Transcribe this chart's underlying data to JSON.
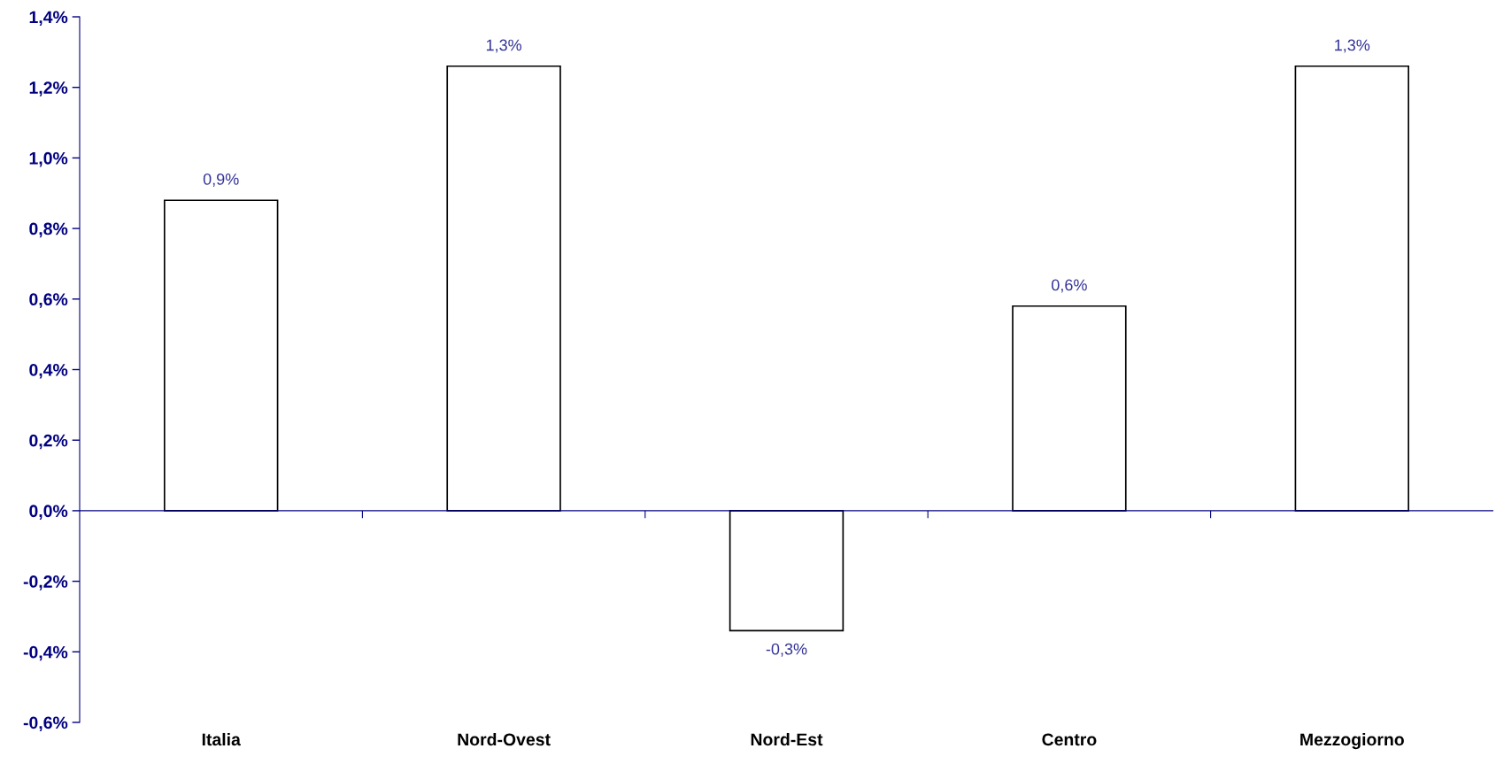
{
  "chart_data": {
    "type": "bar",
    "categories": [
      "Italia",
      "Nord-Ovest",
      "Nord-Est",
      "Centro",
      "Mezzogiorno"
    ],
    "values": [
      0.88,
      1.26,
      -0.34,
      0.58,
      1.26
    ],
    "value_labels": [
      "0,9%",
      "1,3%",
      "-0,3%",
      "0,6%",
      "1,3%"
    ],
    "color": "#ffffff",
    "ref_lines": [
      {
        "axis": "y",
        "value": 0,
        "color": "#000080"
      }
    ],
    "ylim": [
      -0.6,
      1.4
    ],
    "yticks": [
      {
        "value": -0.6,
        "label": "-0,6%"
      },
      {
        "value": -0.4,
        "label": "-0,4%"
      },
      {
        "value": -0.2,
        "label": "-0,2%"
      },
      {
        "value": 0.0,
        "label": "0,0%"
      },
      {
        "value": 0.2,
        "label": "0,2%"
      },
      {
        "value": 0.4,
        "label": "0,4%"
      },
      {
        "value": 0.6,
        "label": "0,6%"
      },
      {
        "value": 0.8,
        "label": "0,8%"
      },
      {
        "value": 1.0,
        "label": "1,0%"
      },
      {
        "value": 1.2,
        "label": "1,2%"
      },
      {
        "value": 1.4,
        "label": "1,4%"
      }
    ]
  }
}
